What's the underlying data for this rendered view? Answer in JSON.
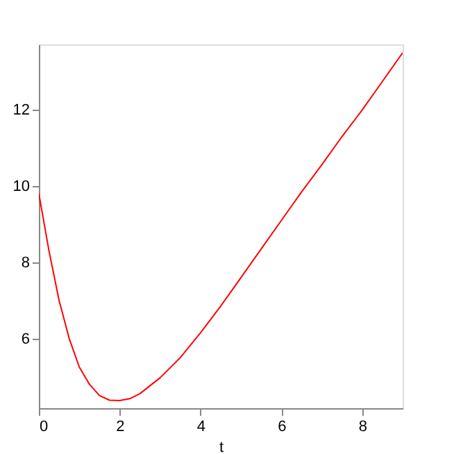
{
  "chart_data": {
    "type": "line",
    "xlabel": "t",
    "x": [
      0,
      0.25,
      0.5,
      0.75,
      1,
      1.25,
      1.5,
      1.75,
      2,
      2.25,
      2.5,
      3,
      3.5,
      4,
      4.5,
      5,
      5.5,
      6,
      6.5,
      7,
      7.5,
      8,
      8.5,
      9
    ],
    "series": [
      {
        "color": "#ff0000",
        "values": [
          9.8,
          8.3,
          7.0,
          6.0,
          5.25,
          4.8,
          4.5,
          4.38,
          4.37,
          4.42,
          4.55,
          4.97,
          5.5,
          6.15,
          6.85,
          7.6,
          8.35,
          9.1,
          9.85,
          10.56,
          11.3,
          12.0,
          12.75,
          13.5
        ]
      }
    ],
    "xlim": [
      0,
      9
    ],
    "ylim": [
      4.17,
      13.72
    ],
    "xticks": [
      0,
      2,
      4,
      6,
      8
    ],
    "yticks": [
      6,
      8,
      10,
      12
    ],
    "grid": false,
    "legend": false,
    "line_style": "solid",
    "marker": "none"
  }
}
